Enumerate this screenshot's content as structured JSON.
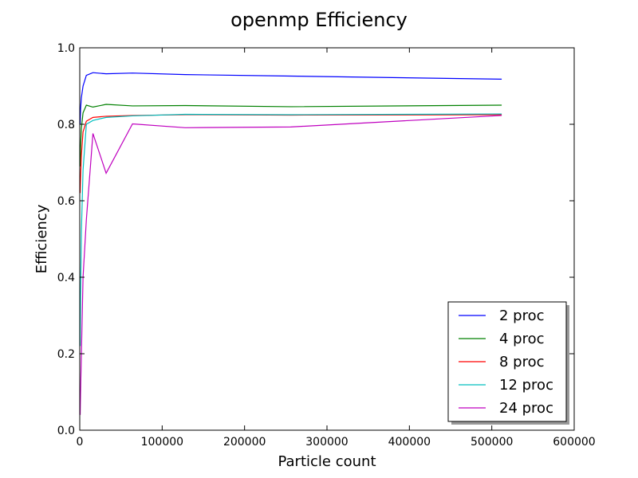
{
  "chart_data": {
    "type": "line",
    "title": "openmp Efficiency",
    "xlabel": "Particle count",
    "ylabel": "Efficiency",
    "xlim": [
      0,
      600000
    ],
    "ylim": [
      0.0,
      1.0
    ],
    "xticks": [
      0,
      100000,
      200000,
      300000,
      400000,
      500000,
      600000
    ],
    "xtick_labels": [
      "0",
      "100000",
      "200000",
      "300000",
      "400000",
      "500000",
      "600000"
    ],
    "yticks": [
      0.0,
      0.2,
      0.4,
      0.6,
      0.8,
      1.0
    ],
    "ytick_labels": [
      "0.0",
      "0.2",
      "0.4",
      "0.6",
      "0.8",
      "1.0"
    ],
    "grid": false,
    "legend_position": "lower-right",
    "x": [
      500,
      1000,
      2000,
      4000,
      8000,
      16000,
      32000,
      64000,
      128000,
      256000,
      512000
    ],
    "series": [
      {
        "name": "2 proc",
        "color": "#0000ff",
        "values": [
          0.8,
          0.84,
          0.87,
          0.9,
          0.928,
          0.935,
          0.932,
          0.934,
          0.93,
          0.926,
          0.918
        ]
      },
      {
        "name": "4 proc",
        "color": "#008000",
        "values": [
          0.69,
          0.74,
          0.79,
          0.83,
          0.85,
          0.845,
          0.852,
          0.848,
          0.849,
          0.846,
          0.85
        ]
      },
      {
        "name": "8 proc",
        "color": "#ff0000",
        "values": [
          0.62,
          0.66,
          0.72,
          0.78,
          0.808,
          0.818,
          0.821,
          0.823,
          0.825,
          0.824,
          0.825
        ]
      },
      {
        "name": "12 proc",
        "color": "#00bfbf",
        "values": [
          0.22,
          0.35,
          0.52,
          0.68,
          0.8,
          0.81,
          0.818,
          0.822,
          0.826,
          0.825,
          0.827
        ]
      },
      {
        "name": "24 proc",
        "color": "#bf00bf",
        "values": [
          0.04,
          0.1,
          0.2,
          0.4,
          0.55,
          0.776,
          0.672,
          0.801,
          0.791,
          0.793,
          0.823
        ]
      }
    ]
  }
}
